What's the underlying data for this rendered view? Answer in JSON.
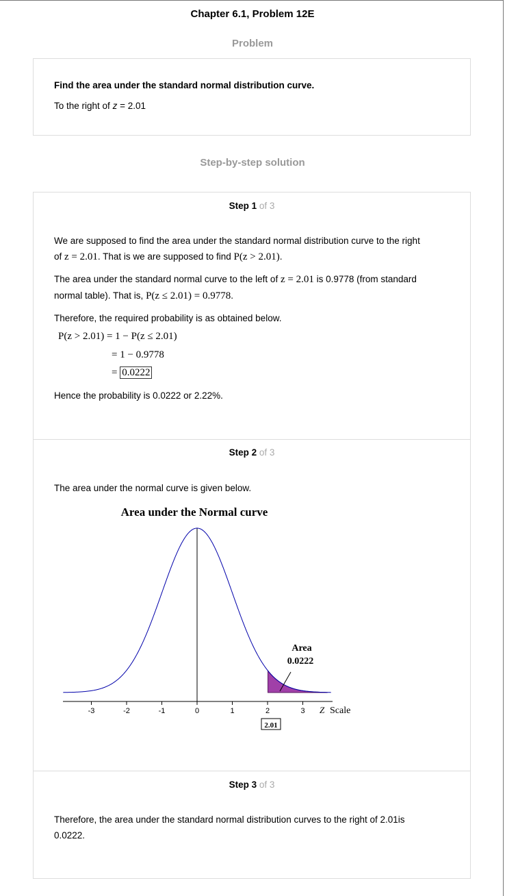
{
  "header": {
    "title": "Chapter 6.1, Problem 12E"
  },
  "problem": {
    "heading": "Problem",
    "prompt": "Find the area under the standard normal distribution curve.",
    "detail_prefix": "To the right of ",
    "detail_var": "z",
    "detail_suffix": " = 2.01"
  },
  "solution": {
    "heading": "Step-by-step solution",
    "steps": [
      {
        "num": "Step 1",
        "of": " of 3",
        "p1_a": "We are supposed to find the area under the standard normal distribution curve to the right",
        "p1_b": "of ",
        "p1_math1": "z = 2.01",
        "p1_c": ". That is we are supposed to find ",
        "p1_math2": "P(z > 2.01)",
        "p1_d": ".",
        "p2_a": "The area under the standard normal curve to the left of ",
        "p2_math1": "z = 2.01",
        "p2_b": " is 0.9778 (from standard",
        "p2_c": "normal table). That is, ",
        "p2_math2": "P(z ≤ 2.01) = 0.9778",
        "p2_d": ".",
        "p3": "Therefore, the required probability is as obtained below.",
        "eq1_lhs": "P(z > 2.01)",
        "eq1_rhs": "= 1 − P(z ≤ 2.01)",
        "eq2": "= 1 − 0.9778",
        "eq3_eq": "=",
        "eq3_val": "0.0222",
        "p4": "Hence the probability is 0.0222 or 2.22%."
      },
      {
        "num": "Step 2",
        "of": " of 3",
        "text": "The area under the normal curve is given below."
      },
      {
        "num": "Step 3",
        "of": " of 3",
        "text_a": "Therefore, the area under the standard normal distribution curves to the right of 2.01is",
        "text_b": "0.0222."
      }
    ]
  },
  "chart_data": {
    "type": "area",
    "title": "Area under the Normal curve",
    "xlabel": "Scale",
    "xlabel_var": "Z",
    "xlim": [
      -3.8,
      3.8
    ],
    "x_ticks": [
      "-3",
      "-2",
      "-1",
      "0",
      "1",
      "2",
      "3"
    ],
    "shaded_from": 2.01,
    "shaded_to": 3.7,
    "cutoff_label": "2.01",
    "annotation_line1": "Area",
    "annotation_line2": "0.0222",
    "curve_color": "#0000aa",
    "fill_color": "#a040a8"
  }
}
